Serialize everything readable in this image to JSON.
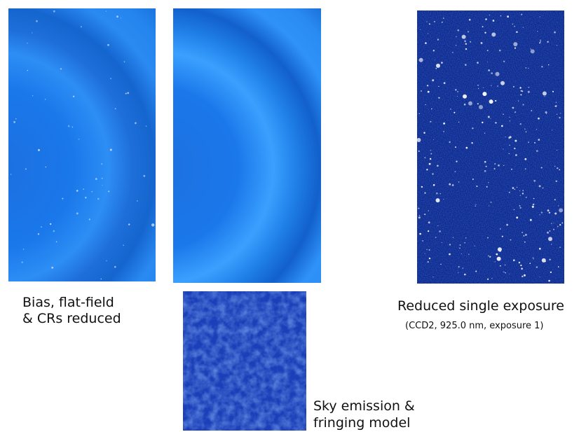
{
  "captions": {
    "calibrated": [
      "Bias, flat-field",
      "& CRs reduced"
    ],
    "reduced": {
      "title": "Reduced single exposure",
      "subtitle": "(CCD2, 925.0 nm, exposure 1)"
    },
    "fringe": [
      "Sky emission &",
      "fringing model"
    ]
  }
}
